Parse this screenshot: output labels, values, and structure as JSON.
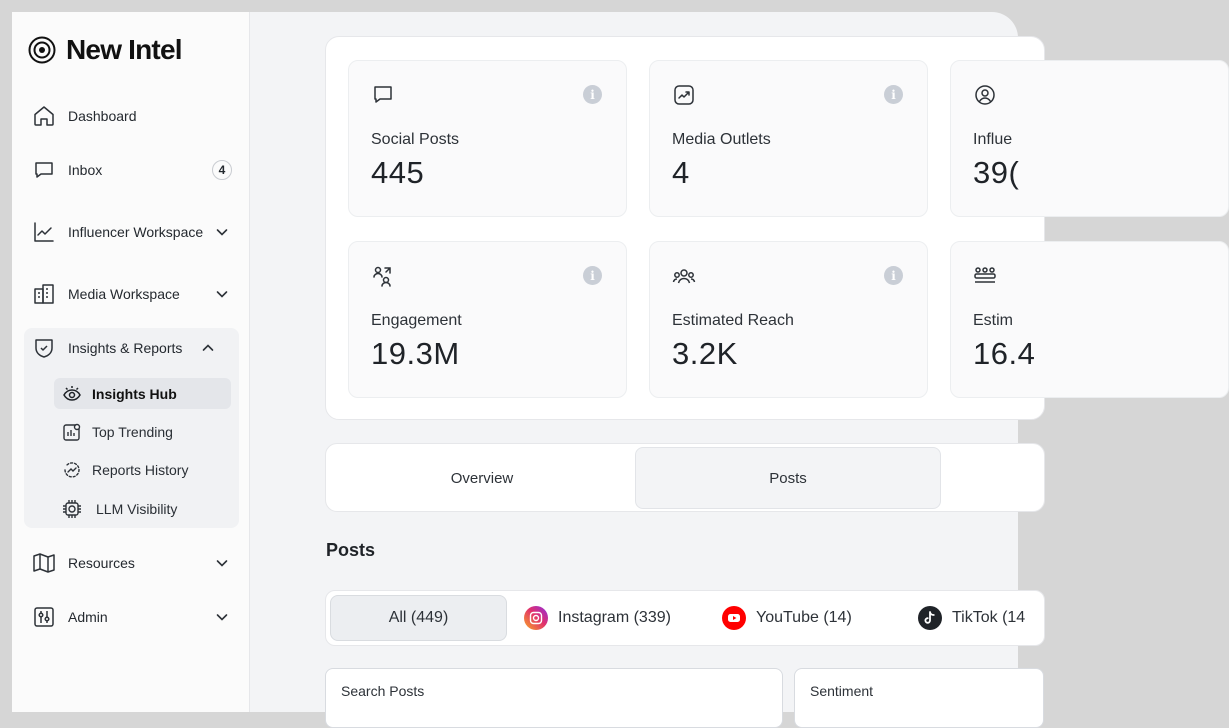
{
  "brand": {
    "name": "New Intel"
  },
  "nav": {
    "dashboard": "Dashboard",
    "inbox": "Inbox",
    "inbox_badge": "4",
    "influencer_workspace": "Influencer Workspace",
    "media_workspace": "Media Workspace",
    "insights_reports": "Insights & Reports",
    "sub": {
      "insights_hub": "Insights Hub",
      "top_trending": "Top Trending",
      "reports_history": "Reports History",
      "llm_visibility": "LLM Visibility"
    },
    "resources": "Resources",
    "admin": "Admin"
  },
  "stats": [
    {
      "label": "Social Posts",
      "value": "445",
      "icon": "chat-icon"
    },
    {
      "label": "Media Outlets",
      "value": "4",
      "icon": "trend-icon"
    },
    {
      "label": "Influe",
      "value": "39(",
      "icon": "user-circle-icon"
    },
    {
      "label": "Engagement",
      "value": "19.3M",
      "icon": "engagement-icon"
    },
    {
      "label": "Estimated Reach",
      "value": "3.2K",
      "icon": "users-icon"
    },
    {
      "label": "Estim",
      "value": "16.4",
      "icon": "group-icon"
    }
  ],
  "tabs": {
    "overview": "Overview",
    "posts": "Posts"
  },
  "posts": {
    "title": "Posts",
    "filters": {
      "all": "All (449)",
      "instagram": "Instagram (339)",
      "youtube": "YouTube (14)",
      "tiktok": "TikTok (14"
    },
    "search_label": "Search Posts",
    "sentiment_label": "Sentiment"
  },
  "colors": {
    "instagram": "#e1306c",
    "youtube": "#ff0000",
    "tiktok": "#1f2328",
    "info": "#c9ced6"
  }
}
